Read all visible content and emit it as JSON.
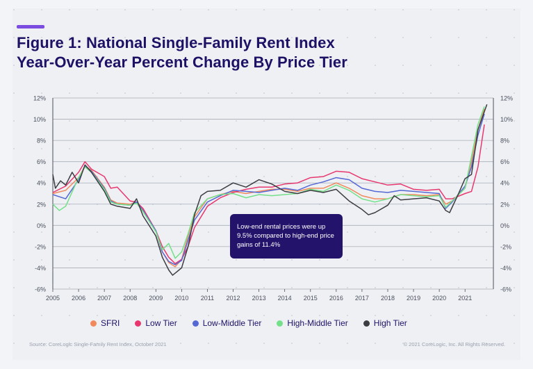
{
  "title_line1": "Figure 1: National Single-Family Rent Index",
  "title_line2": "Year-Over-Year Percent Change By Price Tier",
  "callout": "Low-end rental prices were up 9.5% compared to high-end price gains of 11.4%",
  "source": "Source: CoreLogic Single-Family Rent Index, October 2021",
  "copyright": "© 2021 CoreLogic, Inc. All Rights Reserved.",
  "chart_data": {
    "type": "line",
    "title": "Figure 1: National Single-Family Rent Index Year-Over-Year Percent Change By Price Tier",
    "xlabel": "",
    "ylabel": "",
    "xlim": [
      2005,
      2022.1
    ],
    "ylim": [
      -6,
      12
    ],
    "x_ticks": [
      "2005",
      "2006",
      "2007",
      "2008",
      "2009",
      "2010",
      "2011",
      "2012",
      "2013",
      "2014",
      "2015",
      "2016",
      "2017",
      "2018",
      "2019",
      "2020",
      "2021"
    ],
    "y_ticks": [
      "-6%",
      "-4%",
      "-2%",
      "0%",
      "2%",
      "4%",
      "6%",
      "8%",
      "10%",
      "12%"
    ],
    "grid": true,
    "legend_position": "bottom",
    "series": [
      {
        "name": "SFRI",
        "color": "#f08a5d",
        "points": [
          [
            2005,
            3.0
          ],
          [
            2005.5,
            3.3
          ],
          [
            2006,
            4.5
          ],
          [
            2006.25,
            5.6
          ],
          [
            2006.5,
            5.2
          ],
          [
            2007,
            3.6
          ],
          [
            2007.25,
            2.4
          ],
          [
            2007.5,
            2.1
          ],
          [
            2008,
            2.0
          ],
          [
            2008.25,
            2.2
          ],
          [
            2008.5,
            1.5
          ],
          [
            2009,
            -0.5
          ],
          [
            2009.25,
            -2.5
          ],
          [
            2009.5,
            -3.5
          ],
          [
            2009.75,
            -3.9
          ],
          [
            2010,
            -3.2
          ],
          [
            2010.25,
            -1.0
          ],
          [
            2010.5,
            0.8
          ],
          [
            2011,
            2.5
          ],
          [
            2011.5,
            2.9
          ],
          [
            2012,
            3.2
          ],
          [
            2012.5,
            3.0
          ],
          [
            2013,
            3.2
          ],
          [
            2013.5,
            3.4
          ],
          [
            2014,
            3.4
          ],
          [
            2014.5,
            3.2
          ],
          [
            2015,
            3.5
          ],
          [
            2015.5,
            3.5
          ],
          [
            2016,
            4.0
          ],
          [
            2016.5,
            3.5
          ],
          [
            2017,
            2.8
          ],
          [
            2017.5,
            2.5
          ],
          [
            2018,
            2.5
          ],
          [
            2018.5,
            2.9
          ],
          [
            2019,
            2.9
          ],
          [
            2019.5,
            2.8
          ],
          [
            2020,
            2.9
          ],
          [
            2020.25,
            2.0
          ],
          [
            2020.5,
            2.3
          ],
          [
            2021,
            3.5
          ],
          [
            2021.25,
            6.0
          ],
          [
            2021.5,
            9.0
          ],
          [
            2021.75,
            11.0
          ]
        ]
      },
      {
        "name": "Low Tier",
        "color": "#e8376f",
        "points": [
          [
            2005,
            3.1
          ],
          [
            2005.5,
            3.7
          ],
          [
            2006,
            5.0
          ],
          [
            2006.25,
            6.0
          ],
          [
            2006.5,
            5.3
          ],
          [
            2007,
            4.6
          ],
          [
            2007.25,
            3.5
          ],
          [
            2007.5,
            3.6
          ],
          [
            2008,
            2.3
          ],
          [
            2008.25,
            2.2
          ],
          [
            2008.5,
            1.6
          ],
          [
            2009,
            -0.5
          ],
          [
            2009.25,
            -2.0
          ],
          [
            2009.5,
            -3.0
          ],
          [
            2009.75,
            -3.6
          ],
          [
            2010,
            -3.2
          ],
          [
            2010.25,
            -2.0
          ],
          [
            2010.5,
            -0.2
          ],
          [
            2011,
            1.8
          ],
          [
            2011.5,
            2.6
          ],
          [
            2012,
            3.1
          ],
          [
            2012.5,
            3.4
          ],
          [
            2013,
            3.6
          ],
          [
            2013.5,
            3.6
          ],
          [
            2014,
            3.9
          ],
          [
            2014.5,
            4.0
          ],
          [
            2015,
            4.5
          ],
          [
            2015.5,
            4.6
          ],
          [
            2016,
            5.1
          ],
          [
            2016.5,
            5.0
          ],
          [
            2017,
            4.4
          ],
          [
            2017.5,
            4.1
          ],
          [
            2018,
            3.8
          ],
          [
            2018.5,
            3.9
          ],
          [
            2019,
            3.4
          ],
          [
            2019.5,
            3.3
          ],
          [
            2020,
            3.4
          ],
          [
            2020.25,
            2.5
          ],
          [
            2020.5,
            2.5
          ],
          [
            2021,
            3.0
          ],
          [
            2021.25,
            3.2
          ],
          [
            2021.5,
            5.5
          ],
          [
            2021.75,
            9.5
          ]
        ]
      },
      {
        "name": "Low-Middle Tier",
        "color": "#5568d3",
        "points": [
          [
            2005,
            2.9
          ],
          [
            2005.5,
            2.5
          ],
          [
            2006,
            4.3
          ],
          [
            2006.25,
            5.6
          ],
          [
            2006.5,
            5.1
          ],
          [
            2007,
            3.5
          ],
          [
            2007.25,
            2.3
          ],
          [
            2007.5,
            2.0
          ],
          [
            2008,
            1.9
          ],
          [
            2008.25,
            2.2
          ],
          [
            2008.5,
            1.4
          ],
          [
            2009,
            -0.5
          ],
          [
            2009.25,
            -2.5
          ],
          [
            2009.5,
            -3.4
          ],
          [
            2009.75,
            -3.7
          ],
          [
            2010,
            -3.3
          ],
          [
            2010.25,
            -1.4
          ],
          [
            2010.5,
            0.5
          ],
          [
            2011,
            2.2
          ],
          [
            2011.5,
            2.8
          ],
          [
            2012,
            3.3
          ],
          [
            2012.5,
            3.2
          ],
          [
            2013,
            3.1
          ],
          [
            2013.5,
            3.3
          ],
          [
            2014,
            3.5
          ],
          [
            2014.5,
            3.3
          ],
          [
            2015,
            3.8
          ],
          [
            2015.5,
            4.1
          ],
          [
            2016,
            4.5
          ],
          [
            2016.5,
            4.3
          ],
          [
            2017,
            3.5
          ],
          [
            2017.5,
            3.2
          ],
          [
            2018,
            3.1
          ],
          [
            2018.5,
            3.3
          ],
          [
            2019,
            3.2
          ],
          [
            2019.5,
            3.1
          ],
          [
            2020,
            3.0
          ],
          [
            2020.25,
            1.6
          ],
          [
            2020.5,
            2.2
          ],
          [
            2021,
            3.7
          ],
          [
            2021.25,
            5.5
          ],
          [
            2021.5,
            8.5
          ],
          [
            2021.75,
            10.5
          ]
        ]
      },
      {
        "name": "High-Middle Tier",
        "color": "#74e089",
        "points": [
          [
            2005,
            2.0
          ],
          [
            2005.25,
            1.4
          ],
          [
            2005.5,
            1.8
          ],
          [
            2006,
            4.5
          ],
          [
            2006.25,
            5.5
          ],
          [
            2006.5,
            5.0
          ],
          [
            2007,
            3.4
          ],
          [
            2007.25,
            2.2
          ],
          [
            2007.5,
            2.0
          ],
          [
            2008,
            1.9
          ],
          [
            2008.25,
            2.1
          ],
          [
            2008.5,
            1.3
          ],
          [
            2009,
            -0.6
          ],
          [
            2009.25,
            -2.3
          ],
          [
            2009.5,
            -1.7
          ],
          [
            2009.75,
            -3.1
          ],
          [
            2010,
            -2.5
          ],
          [
            2010.25,
            -0.8
          ],
          [
            2010.5,
            1.2
          ],
          [
            2011,
            2.5
          ],
          [
            2011.5,
            2.9
          ],
          [
            2012,
            3.0
          ],
          [
            2012.5,
            2.6
          ],
          [
            2013,
            2.9
          ],
          [
            2013.5,
            2.8
          ],
          [
            2014,
            2.9
          ],
          [
            2014.5,
            3.0
          ],
          [
            2015,
            3.4
          ],
          [
            2015.5,
            3.2
          ],
          [
            2016,
            3.8
          ],
          [
            2016.5,
            3.3
          ],
          [
            2017,
            2.5
          ],
          [
            2017.5,
            2.2
          ],
          [
            2018,
            2.5
          ],
          [
            2018.5,
            2.9
          ],
          [
            2019,
            2.8
          ],
          [
            2019.5,
            2.7
          ],
          [
            2020,
            2.8
          ],
          [
            2020.25,
            1.7
          ],
          [
            2020.5,
            2.3
          ],
          [
            2021,
            3.5
          ],
          [
            2021.25,
            6.5
          ],
          [
            2021.5,
            9.5
          ],
          [
            2021.75,
            11.2
          ]
        ]
      },
      {
        "name": "High Tier",
        "color": "#3c3c42",
        "points": [
          [
            2005,
            4.8
          ],
          [
            2005.1,
            3.5
          ],
          [
            2005.3,
            4.2
          ],
          [
            2005.5,
            3.8
          ],
          [
            2005.75,
            5.0
          ],
          [
            2006,
            4.0
          ],
          [
            2006.25,
            5.7
          ],
          [
            2006.5,
            5.0
          ],
          [
            2007,
            3.2
          ],
          [
            2007.25,
            2.0
          ],
          [
            2007.5,
            1.8
          ],
          [
            2008,
            1.6
          ],
          [
            2008.25,
            2.5
          ],
          [
            2008.5,
            0.9
          ],
          [
            2009,
            -1.0
          ],
          [
            2009.25,
            -3.0
          ],
          [
            2009.5,
            -4.2
          ],
          [
            2009.65,
            -4.7
          ],
          [
            2010,
            -4.0
          ],
          [
            2010.25,
            -2.0
          ],
          [
            2010.5,
            1.0
          ],
          [
            2010.75,
            2.8
          ],
          [
            2011,
            3.2
          ],
          [
            2011.5,
            3.3
          ],
          [
            2012,
            4.0
          ],
          [
            2012.5,
            3.6
          ],
          [
            2013,
            4.3
          ],
          [
            2013.5,
            3.9
          ],
          [
            2014,
            3.2
          ],
          [
            2014.5,
            3.0
          ],
          [
            2015,
            3.3
          ],
          [
            2015.5,
            3.1
          ],
          [
            2016,
            3.4
          ],
          [
            2016.5,
            2.3
          ],
          [
            2017,
            1.5
          ],
          [
            2017.25,
            1.0
          ],
          [
            2017.5,
            1.2
          ],
          [
            2018,
            1.9
          ],
          [
            2018.25,
            2.8
          ],
          [
            2018.5,
            2.4
          ],
          [
            2019,
            2.5
          ],
          [
            2019.5,
            2.6
          ],
          [
            2020,
            2.3
          ],
          [
            2020.25,
            1.4
          ],
          [
            2020.4,
            1.2
          ],
          [
            2020.75,
            3.0
          ],
          [
            2021,
            4.4
          ],
          [
            2021.25,
            4.8
          ],
          [
            2021.5,
            9.0
          ],
          [
            2021.85,
            11.4
          ]
        ]
      }
    ]
  }
}
